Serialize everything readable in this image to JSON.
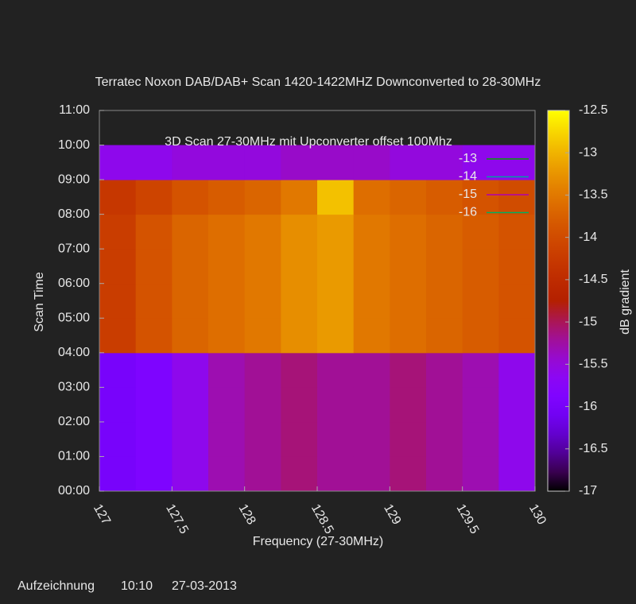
{
  "chart_data": {
    "type": "heatmap",
    "title": "Terratec Noxon DAB/DAB+ Scan 1420-1422MHZ Downconverted to 28-30MHz",
    "annotation": "3D Scan 27-30MHz mit Upconverter offset 100Mhz",
    "x_label": "Frequency (27-30MHz)",
    "y_label": "Scan Time",
    "z_label": "dB gradient",
    "xlim": [
      127,
      130
    ],
    "xticks": [
      127,
      127.5,
      128,
      128.5,
      129,
      129.5,
      130
    ],
    "ylim": [
      0,
      11
    ],
    "yticks": [
      {
        "value": 0,
        "label": "00:00"
      },
      {
        "value": 1,
        "label": "01:00"
      },
      {
        "value": 2,
        "label": "02:00"
      },
      {
        "value": 3,
        "label": "03:00"
      },
      {
        "value": 4,
        "label": "04:00"
      },
      {
        "value": 5,
        "label": "05:00"
      },
      {
        "value": 6,
        "label": "06:00"
      },
      {
        "value": 7,
        "label": "07:00"
      },
      {
        "value": 8,
        "label": "08:00"
      },
      {
        "value": 9,
        "label": "09:00"
      },
      {
        "value": 10,
        "label": "10:00"
      },
      {
        "value": 11,
        "label": "11:00"
      }
    ],
    "zlim": [
      -17,
      -12.5
    ],
    "zticks": [
      -17,
      -16.5,
      -16,
      -15.5,
      -15,
      -14.5,
      -14,
      -13.5,
      -13,
      -12.5
    ],
    "x_edges": [
      127,
      127.25,
      127.5,
      127.75,
      128,
      128.25,
      128.5,
      128.75,
      129,
      129.25,
      129.5,
      129.75,
      130
    ],
    "y_edges": [
      0,
      1,
      2,
      3,
      4,
      5,
      6,
      7,
      8,
      9,
      10
    ],
    "z": [
      [
        -16,
        -15.9,
        -15.6,
        -15.3,
        -15.2,
        -15.1,
        -15.2,
        -15.2,
        -15.1,
        -15.2,
        -15.3,
        -15.6
      ],
      [
        -16,
        -15.9,
        -15.6,
        -15.3,
        -15.2,
        -15.1,
        -15.2,
        -15.2,
        -15.1,
        -15.2,
        -15.3,
        -15.6
      ],
      [
        -16,
        -15.9,
        -15.6,
        -15.3,
        -15.2,
        -15.1,
        -15.2,
        -15.2,
        -15.1,
        -15.2,
        -15.3,
        -15.6
      ],
      [
        -16,
        -15.9,
        -15.6,
        -15.3,
        -15.2,
        -15.1,
        -15.2,
        -15.2,
        -15.1,
        -15.2,
        -15.3,
        -15.6
      ],
      [
        -14.2,
        -13.9,
        -13.7,
        -13.6,
        -13.5,
        -13.3,
        -13.2,
        -13.5,
        -13.6,
        -13.7,
        -13.8,
        -13.9
      ],
      [
        -14.2,
        -13.9,
        -13.7,
        -13.6,
        -13.5,
        -13.3,
        -13.2,
        -13.5,
        -13.6,
        -13.7,
        -13.8,
        -13.9
      ],
      [
        -14.2,
        -13.9,
        -13.7,
        -13.6,
        -13.5,
        -13.3,
        -13.2,
        -13.5,
        -13.6,
        -13.7,
        -13.8,
        -13.9
      ],
      [
        -14.2,
        -13.9,
        -13.7,
        -13.6,
        -13.5,
        -13.3,
        -13.2,
        -13.5,
        -13.6,
        -13.7,
        -13.8,
        -13.9
      ],
      [
        -14.3,
        -14.1,
        -13.9,
        -13.8,
        -13.7,
        -13.5,
        -12.9,
        -13.6,
        -13.7,
        -13.8,
        -13.9,
        -14
      ],
      [
        -15.6,
        -15.6,
        -15.5,
        -15.5,
        -15.5,
        -15.4,
        -15.4,
        -15.4,
        -15.5,
        -15.5,
        -15.6,
        -15.6
      ]
    ],
    "contours": [
      {
        "name": "-13",
        "color": "#00a000"
      },
      {
        "name": "-14",
        "color": "#00a0a0"
      },
      {
        "name": "-15",
        "color": "#b000b0"
      },
      {
        "name": "-16",
        "color": "#00b060"
      }
    ]
  },
  "footer": {
    "label": "Aufzeichnung",
    "time": "10:10",
    "date": "27-03-2013"
  }
}
